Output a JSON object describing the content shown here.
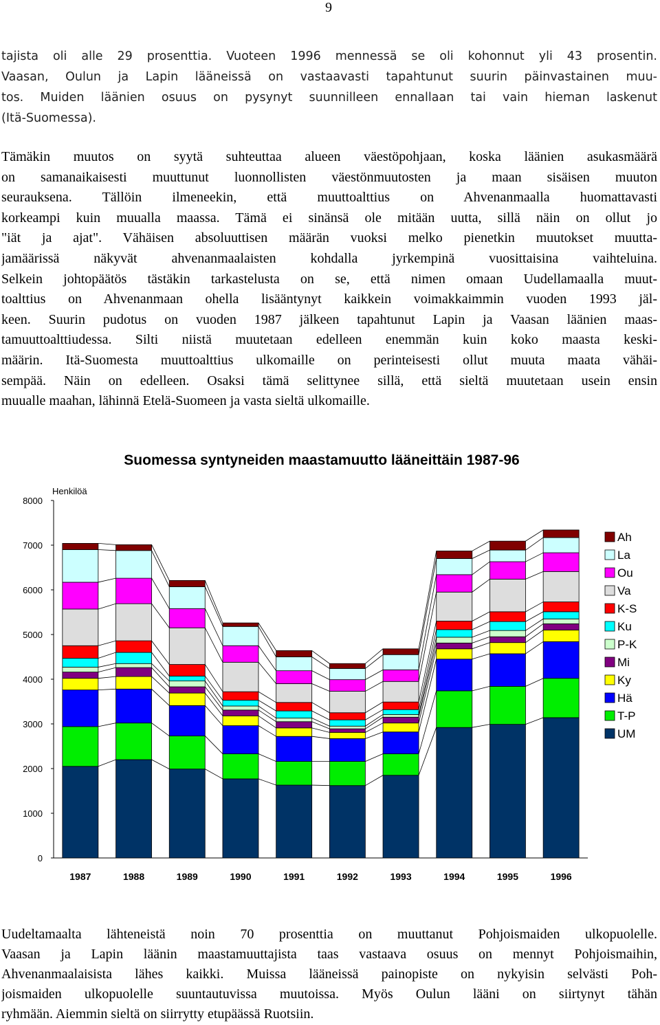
{
  "page_number": "9",
  "paragraphs": [
    {
      "lines": [
        "tajista oli alle 29 prosenttia. Vuoteen 1996 mennessä se oli kohonnut yli 43 prosentin.",
        "Vaasan, Oulun ja Lapin lääneissä on vastaavasti tapahtunut suurin päinvastainen muu-",
        "tos. Muiden läänien osuus on pysynyt suunnilleen ennallaan tai vain hieman laskenut",
        "(Itä-Suomessa)."
      ]
    },
    {
      "lines": [
        "Tämäkin muutos on syytä suhteuttaa alueen väestöpohjaan, koska läänien asukasmäärä",
        "on samanaikaisesti muuttunut luonnollisten väestönmuutosten ja maan sisäisen muuton",
        "seurauksena. Tällöin ilmeneekin, että muuttoalttius on Ahvenanmaalla huomattavasti",
        "korkeampi kuin muualla maassa. Tämä ei sinänsä ole mitään uutta, sillä näin on ollut jo",
        "\"iät ja ajat\". Vähäisen absoluuttisen määrän vuoksi melko pienetkin muutokset muutta-",
        "jamäärissä näkyvät ahvenanmaalaisten kohdalla jyrkempinä vuosittaisina vaihteluina.",
        "Selkein johtopäätös tästäkin tarkastelusta on se, että nimen omaan Uudellamaalla muut-",
        "toalttius on Ahvenanmaan ohella lisääntynyt kaikkein voimakkaimmin vuoden 1993 jäl-",
        "keen. Suurin pudotus on vuoden 1987 jälkeen tapahtunut Lapin ja Vaasan läänien maas-",
        "tamuuttoalttiudessa. Silti niistä muutetaan edelleen enemmän kuin koko maasta keski-",
        "määrin. Itä-Suomesta muuttoalttius ulkomaille on perinteisesti ollut muuta maata vähäi-",
        "sempää. Näin on edelleen. Osaksi tämä selittynee sillä, että sieltä muutetaan usein ensin",
        "muualle maahan, lähinnä Etelä-Suomeen ja vasta sieltä ulkomaille."
      ]
    },
    {
      "lines": [
        "Uudeltamaalta lähteneistä noin 70 prosenttia on muuttanut Pohjoismaiden ulkopuolelle.",
        "Vaasan ja Lapin läänin maastamuuttajista taas vastaava osuus on mennyt Pohjoismaihin,",
        "Ahvenanmaalaisista lähes kaikki. Muissa lääneissä painopiste on nykyisin selvästi Poh-",
        "joismaiden ulkopuolelle suuntautuvissa muutoissa. Myös Oulun lääni on siirtynyt tähän",
        "ryhmään. Aiemmin sieltä on siirrytty etupäässä Ruotsiin."
      ]
    }
  ],
  "chart_data": {
    "type": "stacked-bar",
    "title": "Suomessa syntyneiden maastamuutto lääneittäin 1987-96",
    "y_label": "Henkilöä",
    "categories": [
      "1987",
      "1988",
      "1989",
      "1990",
      "1991",
      "1992",
      "1993",
      "1994",
      "1995",
      "1996"
    ],
    "ylim": [
      0,
      8000
    ],
    "yticks": [
      0,
      1000,
      2000,
      3000,
      4000,
      5000,
      6000,
      7000,
      8000
    ],
    "series_lines": true,
    "series": [
      {
        "name": "UM",
        "color": "#003366",
        "values": [
          2050,
          2200,
          1990,
          1770,
          1630,
          1620,
          1850,
          2920,
          2990,
          3140
        ]
      },
      {
        "name": "T-P",
        "color": "#00ee00",
        "values": [
          890,
          820,
          740,
          560,
          530,
          540,
          480,
          820,
          850,
          880
        ]
      },
      {
        "name": "Hä",
        "color": "#0000ff",
        "values": [
          820,
          760,
          680,
          630,
          560,
          510,
          490,
          710,
          730,
          820
        ]
      },
      {
        "name": "Ky",
        "color": "#ffff00",
        "values": [
          260,
          280,
          280,
          220,
          190,
          140,
          200,
          230,
          250,
          260
        ]
      },
      {
        "name": "Mi",
        "color": "#800080",
        "values": [
          140,
          200,
          140,
          130,
          140,
          80,
          130,
          130,
          130,
          140
        ]
      },
      {
        "name": "P-K",
        "color": "#ccffcc",
        "values": [
          110,
          90,
          130,
          90,
          80,
          60,
          60,
          130,
          140,
          110
        ]
      },
      {
        "name": "Ku",
        "color": "#00ffff",
        "values": [
          200,
          250,
          110,
          130,
          160,
          140,
          110,
          170,
          200,
          160
        ]
      },
      {
        "name": "K-S",
        "color": "#ff0000",
        "values": [
          280,
          260,
          260,
          190,
          190,
          160,
          170,
          190,
          220,
          220
        ]
      },
      {
        "name": "Va",
        "color": "#dddddd",
        "values": [
          820,
          830,
          820,
          660,
          420,
          480,
          460,
          650,
          730,
          680
        ]
      },
      {
        "name": "Ou",
        "color": "#ff00ff",
        "values": [
          600,
          570,
          430,
          370,
          290,
          260,
          260,
          390,
          390,
          420
        ]
      },
      {
        "name": "La",
        "color": "#ccffff",
        "values": [
          730,
          620,
          490,
          430,
          310,
          250,
          340,
          360,
          260,
          340
        ]
      },
      {
        "name": "Ah",
        "color": "#800000",
        "values": [
          140,
          130,
          140,
          80,
          140,
          110,
          130,
          170,
          200,
          170
        ]
      }
    ]
  }
}
